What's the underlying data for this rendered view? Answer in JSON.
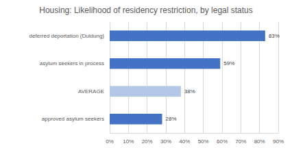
{
  "chart_data": {
    "type": "bar",
    "orientation": "horizontal",
    "title": "Housing: Likelihood of residency restriction, by legal status",
    "categories": [
      "deferred deportation (Duldung)",
      "asylum seekers in process",
      "AVERAGE",
      "approved asylum seekers"
    ],
    "values": [
      83,
      59,
      38,
      28
    ],
    "value_labels": [
      "83%",
      "59%",
      "38%",
      "28%"
    ],
    "colors": [
      "#4472c4",
      "#4472c4",
      "#b4c7e7",
      "#4472c4"
    ],
    "data_labels": true,
    "xlim": [
      0,
      90
    ],
    "xticks": [
      {
        "value": 0,
        "label": "0%"
      },
      {
        "value": 10,
        "label": "10%"
      },
      {
        "value": 20,
        "label": "20%"
      },
      {
        "value": 30,
        "label": "30%"
      },
      {
        "value": 40,
        "label": "40%"
      },
      {
        "value": 50,
        "label": "50%"
      },
      {
        "value": 60,
        "label": "60%"
      },
      {
        "value": 70,
        "label": "70%"
      },
      {
        "value": 80,
        "label": "80%"
      },
      {
        "value": 90,
        "label": "90%"
      }
    ],
    "grid": true
  }
}
